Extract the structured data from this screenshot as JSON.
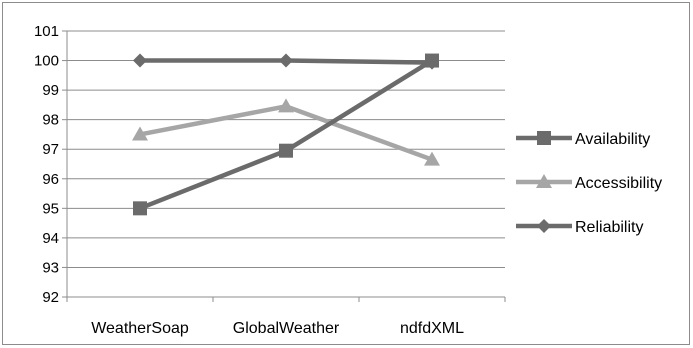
{
  "chart_data": {
    "type": "line",
    "title": "",
    "xlabel": "",
    "ylabel": "",
    "categories": [
      "WeatherSoap",
      "GlobalWeather",
      "ndfdXML"
    ],
    "ylim": [
      92,
      101
    ],
    "yticks": [
      92,
      93,
      94,
      95,
      96,
      97,
      98,
      99,
      100,
      101
    ],
    "grid": true,
    "legend_position": "right",
    "series": [
      {
        "name": "Availability",
        "values": [
          95.0,
          96.95,
          100.0
        ],
        "color": "#6b6b6b",
        "marker": "square"
      },
      {
        "name": "Accessibility",
        "values": [
          97.5,
          98.45,
          96.65
        ],
        "color": "#a6a6a6",
        "marker": "triangle"
      },
      {
        "name": "Reliability",
        "values": [
          100.0,
          100.0,
          99.93
        ],
        "color": "#6b6b6b",
        "marker": "diamond"
      }
    ]
  }
}
